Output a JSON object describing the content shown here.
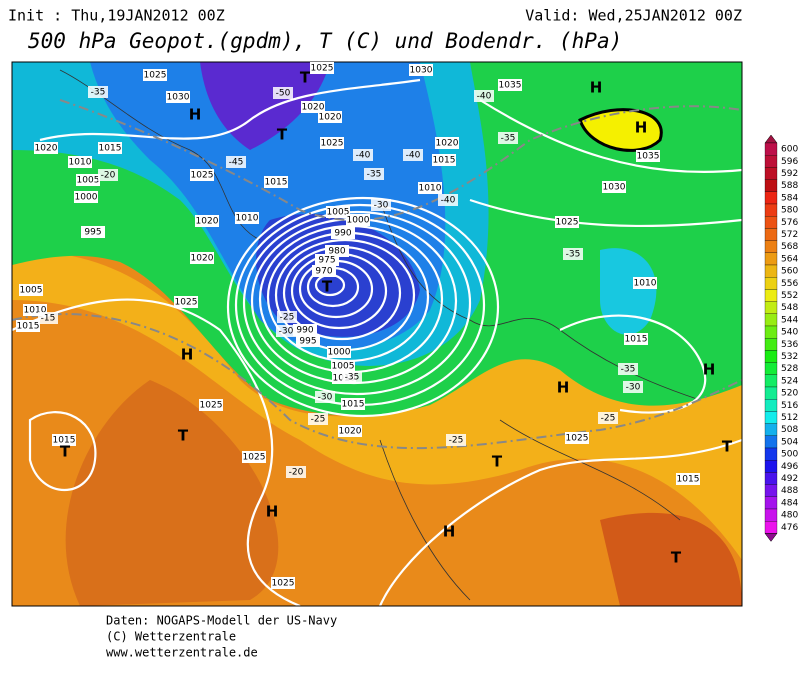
{
  "header": {
    "init": "Init : Thu,19JAN2012 00Z",
    "valid": "Valid: Wed,25JAN2012 00Z",
    "title": "500 hPa Geopot.(gpdm), T (C) und Bodendr. (hPa)"
  },
  "map": {
    "isobar_labels": [
      1025,
      1030,
      1025,
      1030,
      1035,
      1020,
      1020,
      1025,
      1020,
      1015,
      1010,
      1005,
      1000,
      995,
      1025,
      1015,
      1010,
      1020,
      1020,
      1005,
      1000,
      990,
      980,
      975,
      970,
      990,
      995,
      1000,
      1005,
      1010,
      1015,
      1020,
      1005,
      1010,
      1015,
      1025,
      1025,
      1015,
      1025,
      1025,
      1020,
      1015,
      1010,
      1025,
      1030,
      1035,
      1015,
      1025,
      1015,
      1010
    ],
    "temperature_labels": [
      -35,
      -50,
      -45,
      -40,
      -40,
      -40,
      -35,
      -35,
      -30,
      -40,
      -35,
      -25,
      -30,
      -35,
      -30,
      -25,
      -25,
      -35,
      -30,
      -25,
      -20,
      -15,
      -20
    ],
    "pressure_centers": [
      "H",
      "T",
      "T",
      "H",
      "H",
      "T",
      "H",
      "T",
      "T",
      "H",
      "T",
      "H",
      "H",
      "H",
      "T",
      "T"
    ]
  },
  "colorbar": {
    "labels": [
      600,
      596,
      592,
      588,
      584,
      580,
      576,
      572,
      568,
      564,
      560,
      556,
      552,
      548,
      544,
      540,
      536,
      532,
      528,
      524,
      520,
      516,
      512,
      508,
      504,
      500,
      496,
      492,
      488,
      484,
      480,
      476
    ]
  },
  "footer": {
    "lines": [
      "Daten: NOGAPS-Modell der US-Navy",
      "(C) Wetterzentrale",
      "www.wetterzentrale.de"
    ]
  }
}
